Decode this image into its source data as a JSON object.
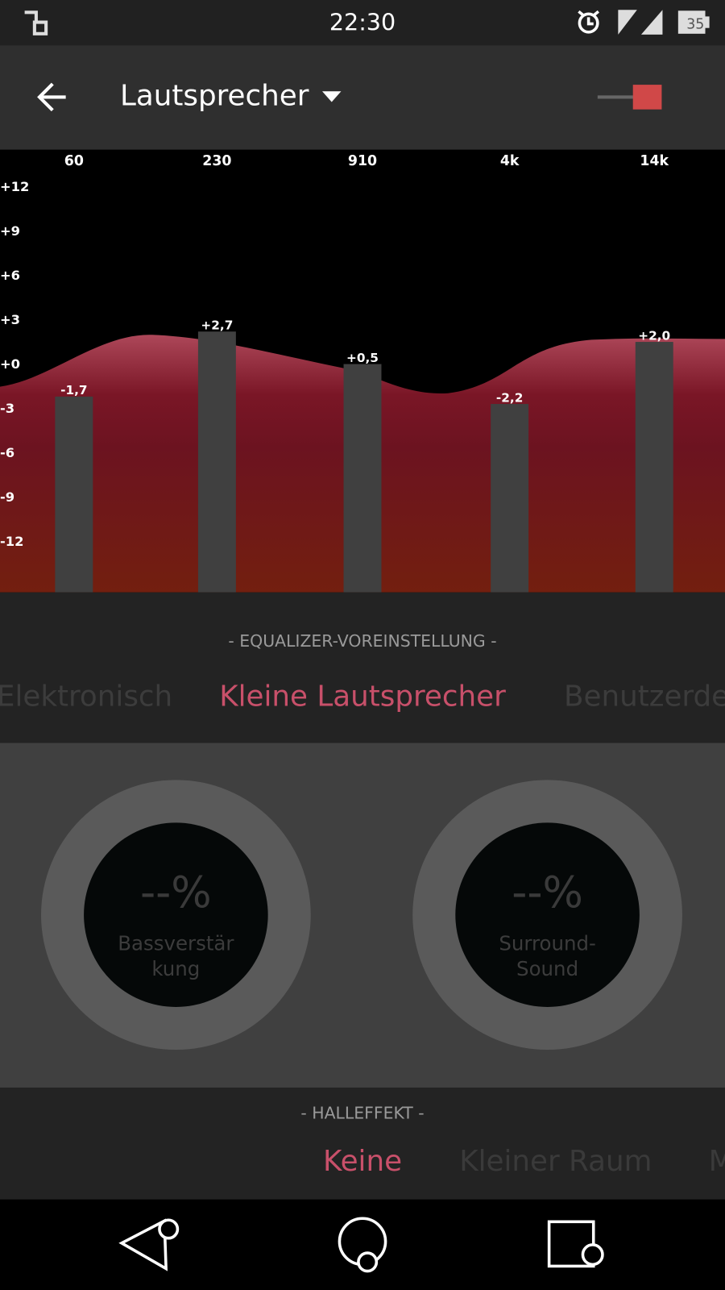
{
  "status_bar": {
    "time": "22:30",
    "battery": "35"
  },
  "toolbar": {
    "title": "Lautsprecher"
  },
  "equalizer": {
    "scale": [
      {
        "value": 12,
        "label": "+12"
      },
      {
        "value": 9,
        "label": "+9"
      },
      {
        "value": 6,
        "label": "+6"
      },
      {
        "value": 3,
        "label": "+3"
      },
      {
        "value": 0,
        "label": "+0"
      },
      {
        "value": -3,
        "label": "-3"
      },
      {
        "value": -6,
        "label": "-6"
      },
      {
        "value": -9,
        "label": "-9"
      },
      {
        "value": -12,
        "label": "-12"
      }
    ],
    "bands": [
      {
        "frequency": "60",
        "value": -1.7,
        "value_label": "-1,7"
      },
      {
        "frequency": "230",
        "value": 2.7,
        "value_label": "+2,7"
      },
      {
        "frequency": "910",
        "value": 0.5,
        "value_label": "+0,5"
      },
      {
        "frequency": "4k",
        "value": -2.2,
        "value_label": "-2,2"
      },
      {
        "frequency": "14k",
        "value": 2.0,
        "value_label": "+2,0"
      }
    ]
  },
  "preset": {
    "heading": "- EQUALIZER-VOREINSTELLUNG -",
    "options": [
      "Elektronisch",
      "Kleine Lautsprecher",
      "Benutzerde"
    ]
  },
  "knobs": [
    {
      "value": "--%",
      "label_lines": [
        "Bassverstär",
        "kung"
      ]
    },
    {
      "value": "--%",
      "label_lines": [
        "Surround-",
        "Sound"
      ]
    }
  ],
  "reverb": {
    "heading": "- HALLEFFEKT -",
    "options": [
      "Keine",
      "Kleiner Raum",
      "M"
    ]
  }
}
